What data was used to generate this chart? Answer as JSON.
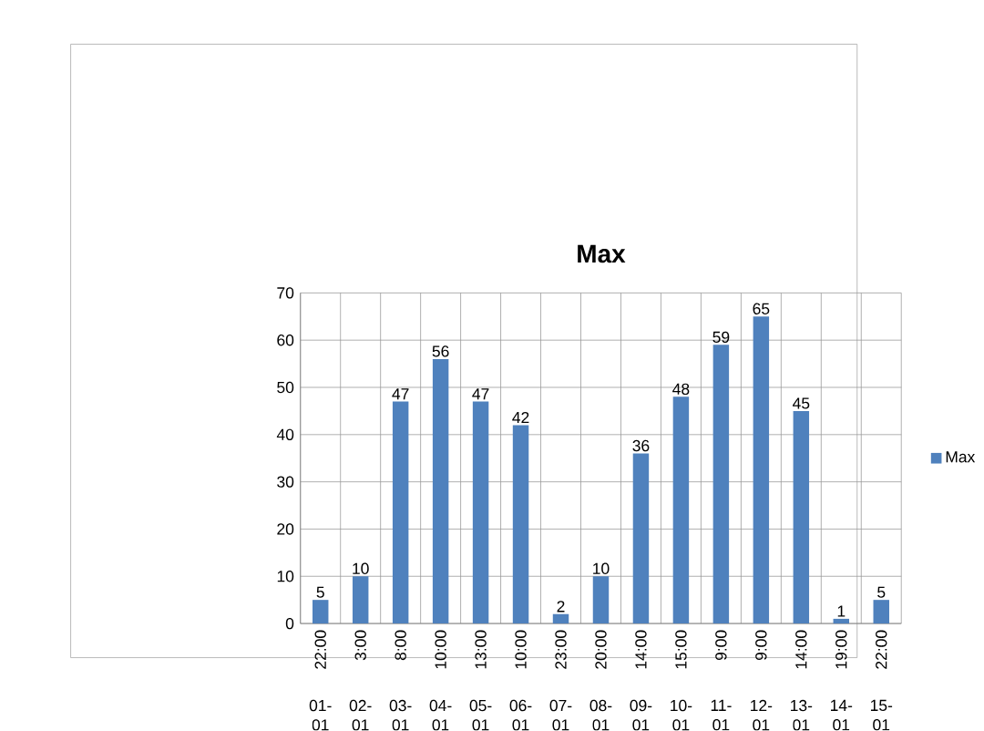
{
  "chart_data": {
    "type": "bar",
    "title": "Max",
    "categories": [
      "22:00",
      "3:00",
      "8:00",
      "10:00",
      "13:00",
      "10:00",
      "23:00",
      "20:00",
      "14:00",
      "15:00",
      "9:00",
      "9:00",
      "14:00",
      "19:00",
      "22:00"
    ],
    "series": [
      {
        "name": "Max",
        "color": "#4f81bd",
        "values": [
          5,
          10,
          47,
          56,
          47,
          42,
          2,
          10,
          36,
          48,
          59,
          65,
          45,
          1,
          5
        ]
      }
    ],
    "annotations": [
      "01-01",
      "02-01",
      "03-01",
      "04-01",
      "05-01",
      "06-01",
      "07-01",
      "08-01",
      "09-01",
      "10-01",
      "11-01",
      "12-01",
      "13-01",
      "14-01",
      "15-01"
    ],
    "ylim": [
      0,
      70
    ],
    "yticks": [
      0,
      10,
      20,
      30,
      40,
      50,
      60,
      70
    ],
    "grid": true,
    "legend": "right",
    "data_labels": true
  }
}
